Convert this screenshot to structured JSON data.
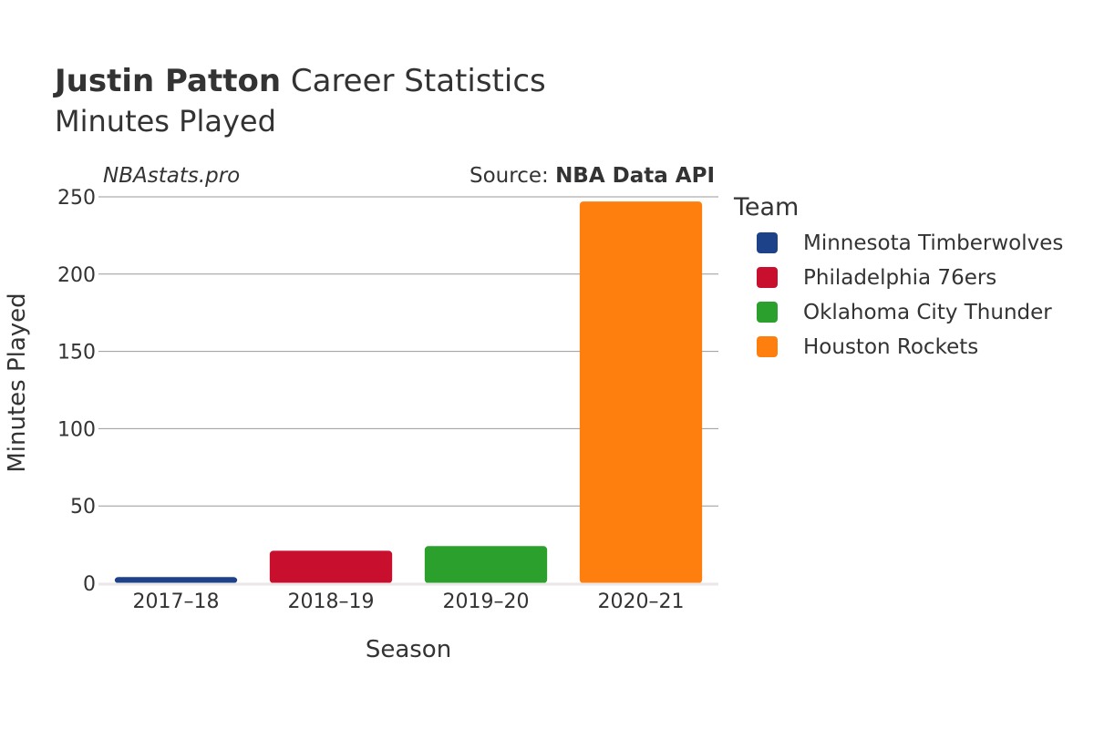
{
  "title": {
    "bold": "Justin Patton",
    "rest": " Career Statistics",
    "subtitle": "Minutes Played"
  },
  "watermark": "NBAstats.pro",
  "source": {
    "prefix": "Source: ",
    "name": "NBA Data API"
  },
  "legend": {
    "title": "Team",
    "placement": "right"
  },
  "chart_data": {
    "type": "bar",
    "title": "Justin Patton Career Statistics",
    "subtitle": "Minutes Played",
    "xlabel": "Season",
    "ylabel": "Minutes Played",
    "categories": [
      "2017–18",
      "2018–19",
      "2019–20",
      "2020–21"
    ],
    "ylim": [
      0,
      250
    ],
    "yticks": [
      0,
      50,
      100,
      150,
      200,
      250
    ],
    "grid": true,
    "series": [
      {
        "name": "Minnesota Timberwolves",
        "color": "#1d428a",
        "values": [
          4,
          null,
          null,
          null
        ]
      },
      {
        "name": "Philadelphia 76ers",
        "color": "#c8102e",
        "values": [
          null,
          21,
          null,
          null
        ]
      },
      {
        "name": "Oklahoma City Thunder",
        "color": "#2ca02c",
        "values": [
          null,
          null,
          24,
          null
        ]
      },
      {
        "name": "Houston Rockets",
        "color": "#ff7f0e",
        "values": [
          null,
          null,
          null,
          247
        ]
      }
    ]
  }
}
